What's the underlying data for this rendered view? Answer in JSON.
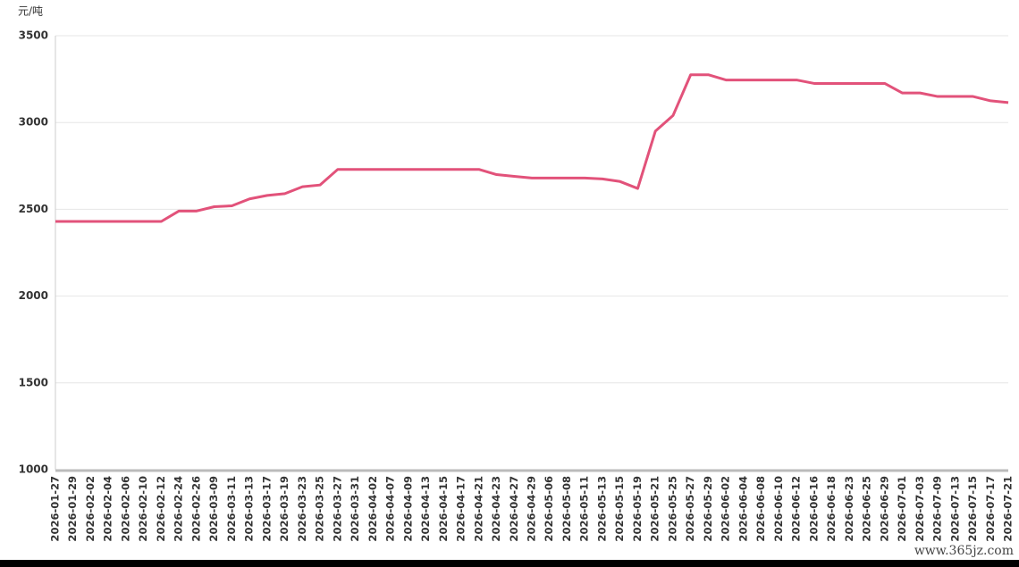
{
  "chart_data": {
    "type": "line",
    "y_label": "元/吨",
    "categories": [
      "2026-01-27",
      "2026-01-29",
      "2026-02-02",
      "2026-02-04",
      "2026-02-06",
      "2026-02-10",
      "2026-02-12",
      "2026-02-24",
      "2026-02-26",
      "2026-03-09",
      "2026-03-11",
      "2026-03-13",
      "2026-03-17",
      "2026-03-19",
      "2026-03-23",
      "2026-03-25",
      "2026-03-27",
      "2026-03-31",
      "2026-04-02",
      "2026-04-07",
      "2026-04-09",
      "2026-04-13",
      "2026-04-15",
      "2026-04-17",
      "2026-04-21",
      "2026-04-23",
      "2026-04-27",
      "2026-04-29",
      "2026-05-06",
      "2026-05-08",
      "2026-05-11",
      "2026-05-13",
      "2026-05-15",
      "2026-05-19",
      "2026-05-21",
      "2026-05-25",
      "2026-05-27",
      "2026-05-29",
      "2026-06-02",
      "2026-06-04",
      "2026-06-08",
      "2026-06-10",
      "2026-06-12",
      "2026-06-16",
      "2026-06-18",
      "2026-06-23",
      "2026-06-25",
      "2026-06-29",
      "2026-07-01",
      "2026-07-03",
      "2026-07-09",
      "2026-07-13",
      "2026-07-15",
      "2026-07-17",
      "2026-07-21"
    ],
    "values": [
      2430,
      2430,
      2430,
      2430,
      2430,
      2430,
      2430,
      2490,
      2490,
      2515,
      2520,
      2560,
      2580,
      2590,
      2630,
      2640,
      2730,
      2730,
      2730,
      2730,
      2730,
      2730,
      2730,
      2730,
      2730,
      2700,
      2690,
      2680,
      2680,
      2680,
      2680,
      2675,
      2660,
      2620,
      2950,
      3040,
      3275,
      3275,
      3245,
      3245,
      3245,
      3245,
      3245,
      3225,
      3225,
      3225,
      3225,
      3225,
      3170,
      3170,
      3150,
      3150,
      3150,
      3125,
      3115
    ],
    "color": "#e2527a",
    "ylim": [
      1000,
      3500
    ],
    "yticks": [
      1000,
      1500,
      2000,
      2500,
      3000,
      3500
    ],
    "grid": true
  },
  "watermark": "www.365jz.com"
}
